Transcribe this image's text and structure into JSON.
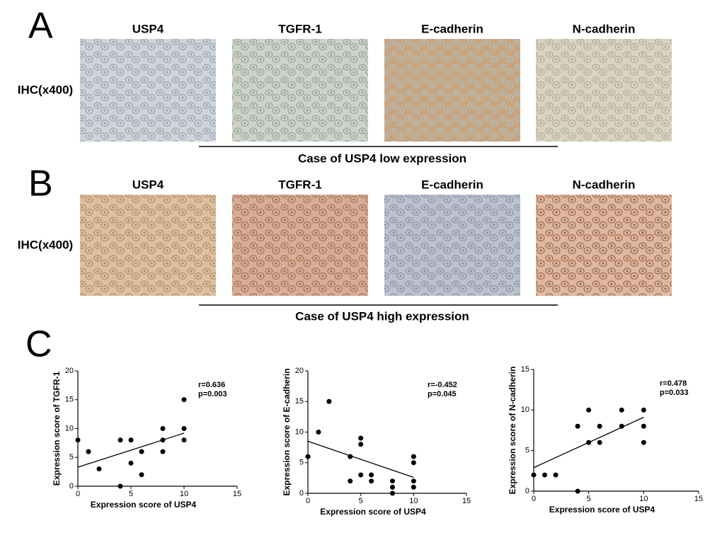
{
  "panels": [
    {
      "label": "A",
      "row_label": "IHC(x400)",
      "columns": [
        "USP4",
        "TGFR-1",
        "E-cadherin",
        "N-cadherin"
      ],
      "caption": "Case of USP4 low expression"
    },
    {
      "label": "B",
      "row_label": "IHC(x400)",
      "columns": [
        "USP4",
        "TGFR-1",
        "E-cadherin",
        "N-cadherin"
      ],
      "caption": "Case of USP4 high expression"
    }
  ],
  "panel_c_label": "C",
  "chart_data": [
    {
      "type": "scatter",
      "x_label": "Expression score of USP4",
      "y_label": "Expression score of TGFR-1",
      "annotations": [
        "r=0.636",
        "p=0.003"
      ],
      "x": [
        0,
        1,
        2,
        4,
        4,
        5,
        5,
        6,
        6,
        8,
        8,
        8,
        10,
        10,
        10
      ],
      "y": [
        8,
        6,
        3,
        8,
        0,
        8,
        4,
        6,
        2,
        10,
        8,
        6,
        15,
        10,
        8
      ],
      "trend_line": {
        "x": [
          0,
          10
        ],
        "y": [
          3.3,
          9.2
        ]
      },
      "color": "#000000",
      "xlim": [
        0,
        15
      ],
      "ylim": [
        0,
        20
      ],
      "xticks": [
        0,
        5,
        10,
        15
      ],
      "yticks": [
        0,
        5,
        10,
        15,
        20
      ]
    },
    {
      "type": "scatter",
      "x_label": "Expression score of USP4",
      "y_label": "Expression score of E-cadherin",
      "annotations": [
        "r=-0.452",
        "p=0.045"
      ],
      "x": [
        0,
        1,
        2,
        4,
        4,
        5,
        5,
        5,
        6,
        6,
        8,
        8,
        8,
        10,
        10,
        10,
        10
      ],
      "y": [
        6,
        10,
        15,
        6,
        2,
        9,
        8,
        3,
        3,
        2,
        2,
        1,
        0,
        6,
        5,
        2,
        1
      ],
      "trend_line": {
        "x": [
          0,
          10
        ],
        "y": [
          8.5,
          2.6
        ]
      },
      "color": "#000000",
      "xlim": [
        0,
        15
      ],
      "ylim": [
        0,
        20
      ],
      "xticks": [
        0,
        5,
        10,
        15
      ],
      "yticks": [
        0,
        5,
        10,
        15,
        20
      ]
    },
    {
      "type": "scatter",
      "x_label": "Expression score of USP4",
      "y_label": "Expression score of N-cadherin",
      "annotations": [
        "r=0.478",
        "p=0.033"
      ],
      "x": [
        0,
        1,
        2,
        4,
        4,
        5,
        5,
        6,
        6,
        8,
        8,
        10,
        10,
        10
      ],
      "y": [
        2,
        2,
        2,
        8,
        0,
        10,
        6,
        8,
        6,
        10,
        8,
        10,
        8,
        6
      ],
      "trend_line": {
        "x": [
          0,
          10
        ],
        "y": [
          2.9,
          9.1
        ]
      },
      "color": "#000000",
      "xlim": [
        0,
        15
      ],
      "ylim": [
        0,
        15
      ],
      "xticks": [
        0,
        5,
        10,
        15
      ],
      "yticks": [
        0,
        5,
        10,
        15
      ]
    }
  ]
}
